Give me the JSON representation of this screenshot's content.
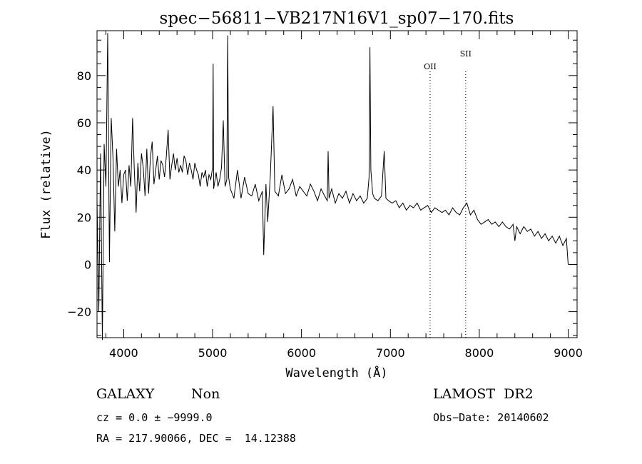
{
  "chart_data": {
    "type": "line",
    "title": "spec−56811−VB217N16V1_sp07−170.fits",
    "xlabel": "Wavelength (Å)",
    "ylabel": "Flux (relative)",
    "xlim": [
      3700,
      9100
    ],
    "ylim": [
      -31,
      99
    ],
    "xticks": [
      {
        "value": 4000,
        "label": "4000"
      },
      {
        "value": 5000,
        "label": "5000"
      },
      {
        "value": 6000,
        "label": "6000"
      },
      {
        "value": 7000,
        "label": "7000"
      },
      {
        "value": 8000,
        "label": "8000"
      },
      {
        "value": 9000,
        "label": "9000"
      }
    ],
    "yticks": [
      {
        "value": -20,
        "label": "−20"
      },
      {
        "value": 0,
        "label": "0"
      },
      {
        "value": 20,
        "label": "20"
      },
      {
        "value": 40,
        "label": "40"
      },
      {
        "value": 60,
        "label": "60"
      },
      {
        "value": 80,
        "label": "80"
      }
    ],
    "grid": false,
    "line_color": "#000000",
    "annotations": [
      {
        "label": "OII",
        "x": 7447
      },
      {
        "label": "SII",
        "x": 7847
      }
    ],
    "series": [
      {
        "name": "",
        "points": [
          [
            3700,
            27
          ],
          [
            3720,
            -20
          ],
          [
            3740,
            47
          ],
          [
            3760,
            -32
          ],
          [
            3780,
            51
          ],
          [
            3800,
            33
          ],
          [
            3820,
            98
          ],
          [
            3840,
            1
          ],
          [
            3860,
            62
          ],
          [
            3880,
            45
          ],
          [
            3900,
            14
          ],
          [
            3920,
            49
          ],
          [
            3940,
            33
          ],
          [
            3960,
            40
          ],
          [
            3980,
            26
          ],
          [
            4000,
            38
          ],
          [
            4020,
            40
          ],
          [
            4040,
            27
          ],
          [
            4060,
            42
          ],
          [
            4080,
            33
          ],
          [
            4100,
            62
          ],
          [
            4120,
            40
          ],
          [
            4140,
            22
          ],
          [
            4160,
            43
          ],
          [
            4180,
            31
          ],
          [
            4200,
            47
          ],
          [
            4220,
            41
          ],
          [
            4240,
            29
          ],
          [
            4260,
            49
          ],
          [
            4280,
            30
          ],
          [
            4300,
            45
          ],
          [
            4320,
            52
          ],
          [
            4340,
            34
          ],
          [
            4360,
            40
          ],
          [
            4380,
            46
          ],
          [
            4400,
            36
          ],
          [
            4420,
            44
          ],
          [
            4440,
            42
          ],
          [
            4460,
            37
          ],
          [
            4480,
            46
          ],
          [
            4500,
            57
          ],
          [
            4520,
            36
          ],
          [
            4540,
            42
          ],
          [
            4560,
            47
          ],
          [
            4580,
            40
          ],
          [
            4600,
            45
          ],
          [
            4620,
            39
          ],
          [
            4640,
            42
          ],
          [
            4660,
            39
          ],
          [
            4680,
            46
          ],
          [
            4700,
            44
          ],
          [
            4720,
            38
          ],
          [
            4740,
            43
          ],
          [
            4760,
            40
          ],
          [
            4780,
            36
          ],
          [
            4800,
            43
          ],
          [
            4820,
            40
          ],
          [
            4840,
            38
          ],
          [
            4860,
            33
          ],
          [
            4880,
            39
          ],
          [
            4900,
            37
          ],
          [
            4920,
            40
          ],
          [
            4940,
            33
          ],
          [
            4960,
            38
          ],
          [
            4980,
            36
          ],
          [
            5000,
            41
          ],
          [
            5006,
            85
          ],
          [
            5012,
            32
          ],
          [
            5040,
            39
          ],
          [
            5060,
            33
          ],
          [
            5080,
            36
          ],
          [
            5100,
            41
          ],
          [
            5120,
            61
          ],
          [
            5140,
            33
          ],
          [
            5160,
            36
          ],
          [
            5170,
            97
          ],
          [
            5180,
            37
          ],
          [
            5200,
            32
          ],
          [
            5240,
            28
          ],
          [
            5280,
            40
          ],
          [
            5320,
            28
          ],
          [
            5360,
            37
          ],
          [
            5400,
            30
          ],
          [
            5440,
            29
          ],
          [
            5480,
            34
          ],
          [
            5520,
            27
          ],
          [
            5560,
            31
          ],
          [
            5575,
            4
          ],
          [
            5600,
            34
          ],
          [
            5620,
            18
          ],
          [
            5650,
            38
          ],
          [
            5680,
            67
          ],
          [
            5700,
            31
          ],
          [
            5740,
            29
          ],
          [
            5780,
            38
          ],
          [
            5820,
            30
          ],
          [
            5860,
            32
          ],
          [
            5900,
            36
          ],
          [
            5940,
            29
          ],
          [
            5980,
            33
          ],
          [
            6020,
            31
          ],
          [
            6060,
            29
          ],
          [
            6100,
            34
          ],
          [
            6140,
            31
          ],
          [
            6180,
            27
          ],
          [
            6220,
            32
          ],
          [
            6260,
            29
          ],
          [
            6290,
            27
          ],
          [
            6300,
            48
          ],
          [
            6310,
            28
          ],
          [
            6340,
            32
          ],
          [
            6380,
            26
          ],
          [
            6420,
            30
          ],
          [
            6460,
            28
          ],
          [
            6500,
            31
          ],
          [
            6540,
            26
          ],
          [
            6580,
            30
          ],
          [
            6620,
            27
          ],
          [
            6660,
            29
          ],
          [
            6700,
            26
          ],
          [
            6740,
            28
          ],
          [
            6760,
            37
          ],
          [
            6770,
            92
          ],
          [
            6780,
            40
          ],
          [
            6800,
            30
          ],
          [
            6820,
            28
          ],
          [
            6860,
            27
          ],
          [
            6900,
            29
          ],
          [
            6930,
            48
          ],
          [
            6950,
            28
          ],
          [
            6980,
            27
          ],
          [
            7020,
            26
          ],
          [
            7060,
            27
          ],
          [
            7100,
            24
          ],
          [
            7140,
            26
          ],
          [
            7180,
            23
          ],
          [
            7220,
            25
          ],
          [
            7260,
            24
          ],
          [
            7300,
            26
          ],
          [
            7340,
            23
          ],
          [
            7380,
            24
          ],
          [
            7420,
            25
          ],
          [
            7460,
            22
          ],
          [
            7500,
            24
          ],
          [
            7540,
            23
          ],
          [
            7580,
            22
          ],
          [
            7620,
            23
          ],
          [
            7660,
            21
          ],
          [
            7700,
            24
          ],
          [
            7740,
            22
          ],
          [
            7780,
            21
          ],
          [
            7820,
            24
          ],
          [
            7860,
            26
          ],
          [
            7900,
            21
          ],
          [
            7940,
            23
          ],
          [
            7980,
            19
          ],
          [
            8020,
            17
          ],
          [
            8060,
            18
          ],
          [
            8100,
            19
          ],
          [
            8140,
            17
          ],
          [
            8180,
            18
          ],
          [
            8220,
            16
          ],
          [
            8260,
            18
          ],
          [
            8300,
            16
          ],
          [
            8340,
            15
          ],
          [
            8380,
            17
          ],
          [
            8400,
            10
          ],
          [
            8420,
            16
          ],
          [
            8460,
            13
          ],
          [
            8500,
            16
          ],
          [
            8540,
            14
          ],
          [
            8580,
            15
          ],
          [
            8620,
            12
          ],
          [
            8660,
            14
          ],
          [
            8700,
            11
          ],
          [
            8740,
            13
          ],
          [
            8780,
            10
          ],
          [
            8820,
            12
          ],
          [
            8860,
            9
          ],
          [
            8900,
            12
          ],
          [
            8940,
            8
          ],
          [
            8980,
            11
          ],
          [
            9000,
            0
          ]
        ]
      }
    ]
  },
  "footer": {
    "object_class": "GALAXY",
    "object_subclass": "Non",
    "survey": "LAMOST  DR2",
    "cz": "cz = 0.0 ± −9999.0",
    "obs_date": "Obs−Date: 20140602",
    "radec": "RA = 217.90066, DEC =  14.12388"
  }
}
